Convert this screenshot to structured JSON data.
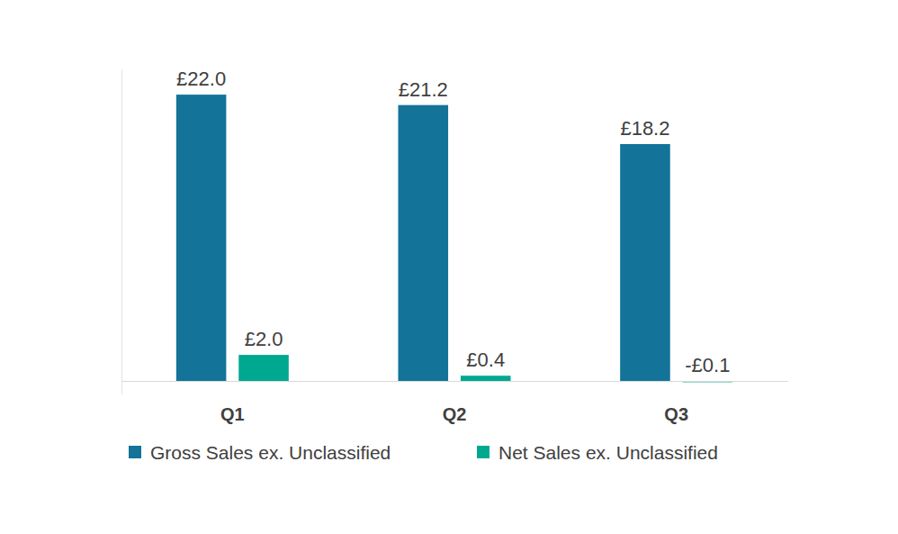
{
  "chart_data": {
    "type": "bar",
    "categories": [
      "Q1",
      "Q2",
      "Q3"
    ],
    "series": [
      {
        "name": "Gross Sales ex. Unclassified",
        "color": "#137399",
        "values": [
          22.0,
          21.2,
          18.2
        ],
        "value_labels": [
          "£22.0",
          "£21.2",
          "£18.2"
        ]
      },
      {
        "name": "Net Sales ex. Unclassified",
        "color": "#00a88f",
        "values": [
          2.0,
          0.4,
          -0.1
        ],
        "value_labels": [
          "£2.0",
          "£0.4",
          "-£0.1"
        ]
      }
    ],
    "ylim": [
      -1,
      24
    ],
    "grid": false,
    "legend": "bottom",
    "data_labels": true,
    "tick_labels": "x"
  }
}
